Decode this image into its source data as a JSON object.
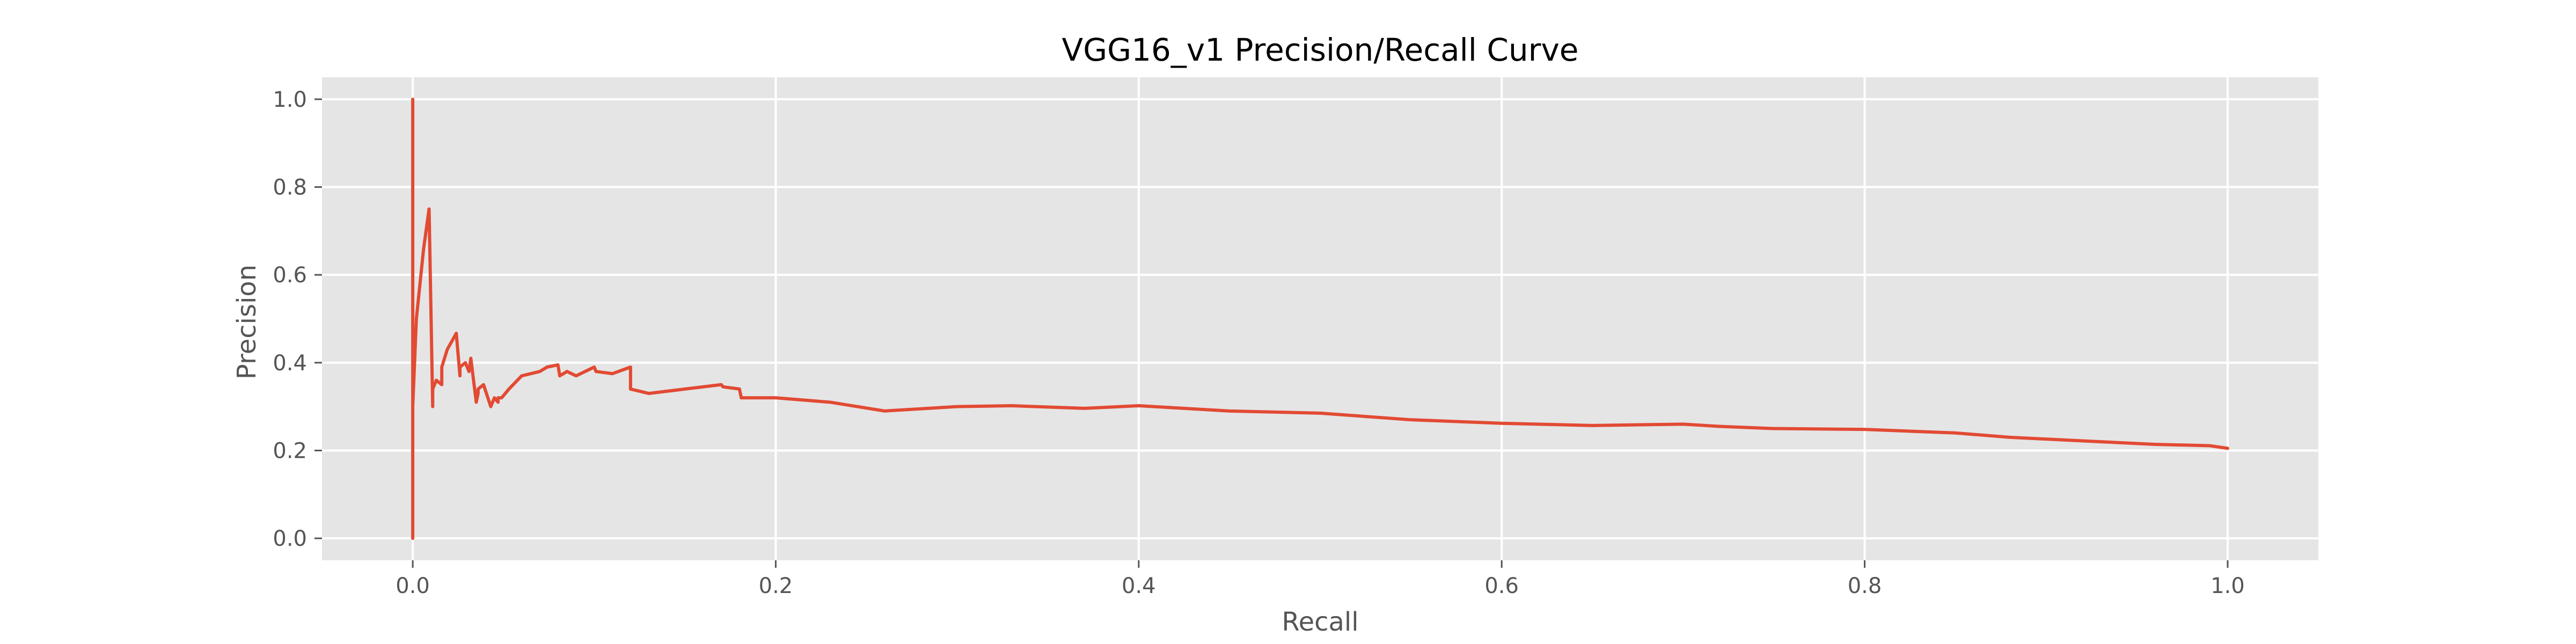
{
  "chart_data": {
    "type": "line",
    "title": "VGG16_v1 Precision/Recall Curve",
    "xlabel": "Recall",
    "ylabel": "Precision",
    "xlim": [
      -0.05,
      1.05
    ],
    "ylim": [
      -0.05,
      1.05
    ],
    "x_ticks": [
      0.0,
      0.2,
      0.4,
      0.6,
      0.8,
      1.0
    ],
    "y_ticks": [
      0.0,
      0.2,
      0.4,
      0.6,
      0.8,
      1.0
    ],
    "x_tick_labels": [
      "0.0",
      "0.2",
      "0.4",
      "0.6",
      "0.8",
      "1.0"
    ],
    "y_tick_labels": [
      "0.0",
      "0.2",
      "0.4",
      "0.6",
      "0.8",
      "1.0"
    ],
    "grid": true,
    "style": {
      "background": "#e5e5e5",
      "grid_color": "#ffffff",
      "line_color": "#e24a33"
    },
    "series": [
      {
        "x": [
          0.0,
          0.0,
          0.0,
          0.002,
          0.006,
          0.009,
          0.011,
          0.011,
          0.013,
          0.016,
          0.016,
          0.019,
          0.024,
          0.026,
          0.026,
          0.029,
          0.031,
          0.032,
          0.035,
          0.036,
          0.036,
          0.039,
          0.043,
          0.045,
          0.047,
          0.047,
          0.049,
          0.051,
          0.053,
          0.06,
          0.07,
          0.074,
          0.08,
          0.081,
          0.085,
          0.09,
          0.1,
          0.101,
          0.11,
          0.12,
          0.12,
          0.13,
          0.15,
          0.17,
          0.171,
          0.18,
          0.181,
          0.2,
          0.23,
          0.26,
          0.3,
          0.33,
          0.37,
          0.4,
          0.45,
          0.5,
          0.55,
          0.6,
          0.65,
          0.7,
          0.72,
          0.75,
          0.8,
          0.85,
          0.88,
          0.92,
          0.96,
          0.99,
          1.0
        ],
        "y": [
          1.0,
          0.0,
          0.3,
          0.5,
          0.66,
          0.75,
          0.3,
          0.34,
          0.36,
          0.35,
          0.39,
          0.43,
          0.467,
          0.37,
          0.39,
          0.4,
          0.38,
          0.41,
          0.31,
          0.33,
          0.34,
          0.35,
          0.3,
          0.32,
          0.31,
          0.32,
          0.32,
          0.33,
          0.34,
          0.37,
          0.38,
          0.39,
          0.395,
          0.37,
          0.38,
          0.37,
          0.39,
          0.38,
          0.375,
          0.39,
          0.34,
          0.33,
          0.34,
          0.35,
          0.345,
          0.34,
          0.32,
          0.32,
          0.31,
          0.29,
          0.3,
          0.302,
          0.296,
          0.302,
          0.29,
          0.285,
          0.27,
          0.262,
          0.257,
          0.26,
          0.255,
          0.25,
          0.248,
          0.24,
          0.23,
          0.222,
          0.214,
          0.211,
          0.205
        ]
      }
    ]
  }
}
